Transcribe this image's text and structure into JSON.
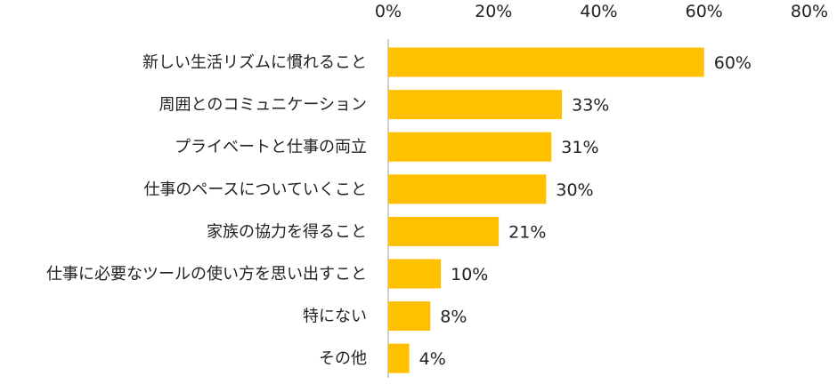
{
  "chart_data": {
    "type": "bar",
    "orientation": "horizontal",
    "categories": [
      "新しい生活リズムに慣れること",
      "周囲とのコミュニケーション",
      "プライベートと仕事の両立",
      "仕事のペースについていくこと",
      "家族の協力を得ること",
      "仕事に必要なツールの使い方を思い出すこと",
      "特にない",
      "その他"
    ],
    "values": [
      60,
      33,
      31,
      30,
      21,
      10,
      8,
      4
    ],
    "value_labels": [
      "60%",
      "33%",
      "31%",
      "30%",
      "21%",
      "10%",
      "8%",
      "4%"
    ],
    "xticks": [
      "0%",
      "20%",
      "40%",
      "60%",
      "80%"
    ],
    "xlim": [
      0,
      80
    ],
    "bar_color": "#FFC000",
    "axis_color": "#BFBFBF",
    "grid": false,
    "legend": "none"
  }
}
